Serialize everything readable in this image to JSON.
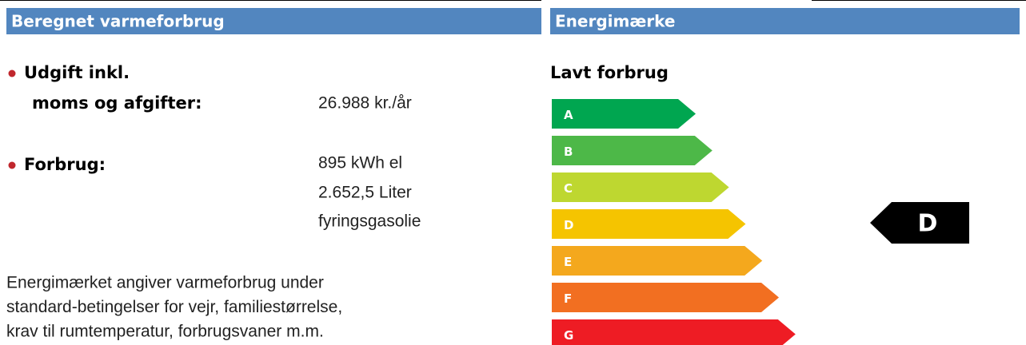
{
  "left": {
    "title": "Beregnet varmeforbrug",
    "items": [
      {
        "label": [
          "Udgift inkl.",
          "moms og afgifter:"
        ],
        "value": [
          "26.988 kr./år"
        ]
      },
      {
        "label": [
          "Forbrug:"
        ],
        "value": [
          "895 kWh el",
          "2.652,5 Liter",
          "fyringsgasolie"
        ]
      }
    ],
    "note": [
      "Energimærket angiver varmeforbrug under",
      "standard-betingelser for vejr, familiestørrelse,",
      "krav til rumtemperatur, forbrugsvaner m.m."
    ]
  },
  "right": {
    "title": "Energimærke",
    "subtitle": "Lavt forbrug",
    "classes": [
      {
        "label": "A",
        "color": "#00a650"
      },
      {
        "label": "B",
        "color": "#4db848"
      },
      {
        "label": "C",
        "color": "#bed730"
      },
      {
        "label": "D",
        "color": "#f5c400"
      },
      {
        "label": "E",
        "color": "#f4a81d"
      },
      {
        "label": "F",
        "color": "#f26f21"
      },
      {
        "label": "G",
        "color": "#ee1c24"
      }
    ],
    "rating": "D"
  }
}
